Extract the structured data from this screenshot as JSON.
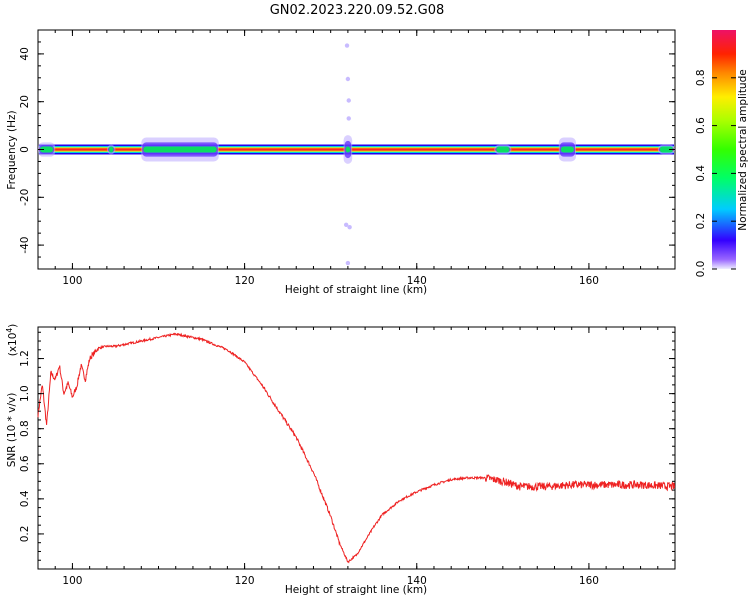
{
  "title": "GN02.2023.220.09.52.G08",
  "chart_data": [
    {
      "type": "heatmap",
      "title": "",
      "xlabel": "Height of straight line (km)",
      "ylabel": "Frequency (Hz)",
      "xlim": [
        96,
        170
      ],
      "ylim": [
        -50,
        50
      ],
      "x_ticks": [
        100,
        120,
        140,
        160
      ],
      "y_ticks": [
        -40,
        -20,
        0,
        20,
        40
      ],
      "grid": false,
      "colormap": "rainbow",
      "line_frequency_hz": 0,
      "spread_regions": [
        {
          "x_from": 96,
          "x_to": 98,
          "spread_hz": 3
        },
        {
          "x_from": 104,
          "x_to": 105,
          "spread_hz": 2
        },
        {
          "x_from": 108,
          "x_to": 117,
          "spread_hz": 5
        },
        {
          "x_from": 131.5,
          "x_to": 132.5,
          "spread_hz": 6
        },
        {
          "x_from": 149,
          "x_to": 151,
          "spread_hz": 2
        },
        {
          "x_from": 156.5,
          "x_to": 158.5,
          "spread_hz": 5
        },
        {
          "x_from": 168,
          "x_to": 170,
          "spread_hz": 2
        }
      ],
      "scattered_points": [
        {
          "x": 131.9,
          "y": 43.5
        },
        {
          "x": 132.0,
          "y": 29.5
        },
        {
          "x": 132.1,
          "y": 20.5
        },
        {
          "x": 132.1,
          "y": 13.0
        },
        {
          "x": 131.8,
          "y": -31.5
        },
        {
          "x": 132.2,
          "y": -32.5
        },
        {
          "x": 132.0,
          "y": -47.5
        }
      ],
      "colorbar": {
        "label": "Normalized spectral amplitude",
        "range": [
          0,
          1
        ],
        "ticks": [
          0.0,
          0.2,
          0.4,
          0.6,
          0.8
        ]
      }
    },
    {
      "type": "line",
      "title": "",
      "xlabel": "Height of straight line (km)",
      "ylabel": "SNR (10 * v/v)",
      "y_multiplier_label": "(x10",
      "y_multiplier_exp": "4",
      "xlim": [
        96,
        170
      ],
      "ylim": [
        0,
        1.38
      ],
      "x_ticks": [
        100,
        120,
        140,
        160
      ],
      "y_ticks": [
        0.2,
        0.4,
        0.6,
        0.8,
        1.0,
        1.2
      ],
      "grid": false,
      "color": "#ee2222",
      "x": [
        96,
        96.5,
        97,
        97.5,
        98,
        98.5,
        99,
        99.5,
        100,
        100.5,
        101,
        101.5,
        102,
        103,
        104,
        105,
        106,
        107,
        108,
        109,
        110,
        111,
        112,
        113,
        114,
        115,
        116,
        118,
        120,
        122,
        124,
        126,
        128,
        130,
        131,
        132,
        133,
        134,
        135,
        136,
        138,
        140,
        142,
        144,
        146,
        148,
        150,
        152,
        155,
        158,
        160,
        163,
        166,
        170
      ],
      "y": [
        0.88,
        1.05,
        0.82,
        1.12,
        1.08,
        1.16,
        1.0,
        1.06,
        0.98,
        1.04,
        1.16,
        1.08,
        1.2,
        1.26,
        1.27,
        1.27,
        1.28,
        1.29,
        1.3,
        1.31,
        1.32,
        1.33,
        1.34,
        1.33,
        1.32,
        1.31,
        1.29,
        1.25,
        1.18,
        1.05,
        0.9,
        0.75,
        0.55,
        0.3,
        0.15,
        0.04,
        0.08,
        0.16,
        0.24,
        0.31,
        0.39,
        0.44,
        0.48,
        0.51,
        0.52,
        0.52,
        0.5,
        0.47,
        0.47,
        0.48,
        0.48,
        0.48,
        0.48,
        0.47
      ]
    }
  ]
}
